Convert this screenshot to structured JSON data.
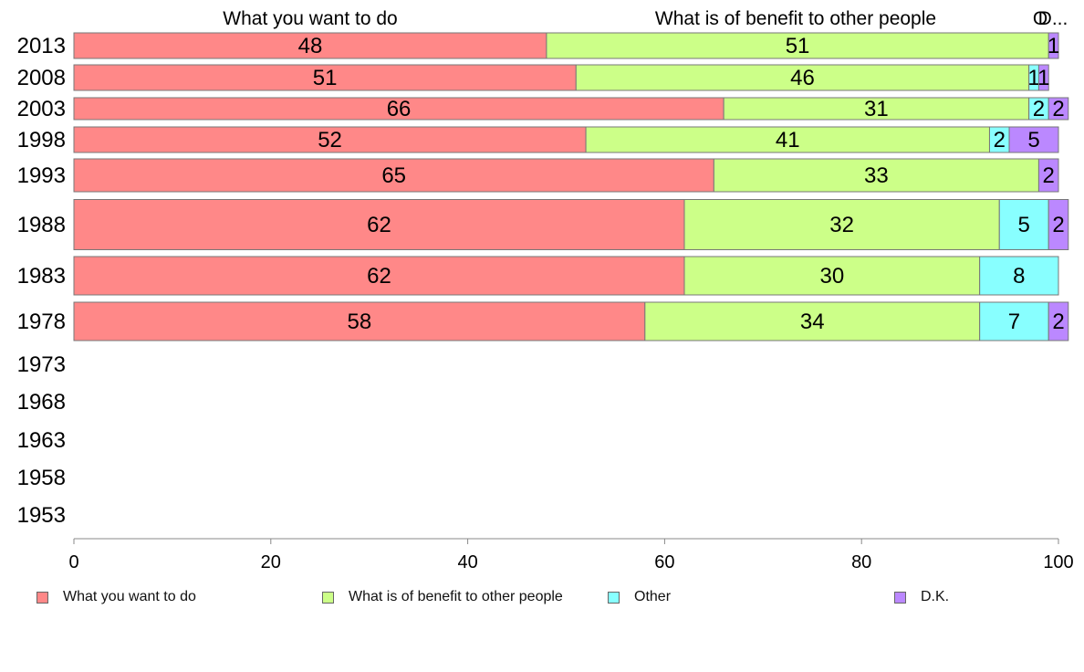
{
  "chart_data": {
    "type": "bar",
    "orientation": "horizontal",
    "stacked": true,
    "title": "",
    "xlabel": "",
    "ylabel": "",
    "xlim": [
      0,
      100
    ],
    "xticks": [
      0,
      20,
      40,
      60,
      80,
      100
    ],
    "grid": false,
    "legend_position": "bottom",
    "categories": [
      "2013",
      "2008",
      "2003",
      "1998",
      "1993",
      "1988",
      "1983",
      "1978",
      "1973",
      "1968",
      "1963",
      "1958",
      "1953"
    ],
    "series": [
      {
        "name": "What you want to do",
        "color": "#ff8888",
        "values": [
          48,
          51,
          66,
          52,
          65,
          62,
          62,
          58,
          null,
          null,
          null,
          null,
          null
        ]
      },
      {
        "name": "What is of benefit to other people",
        "color": "#ccff88",
        "values": [
          51,
          46,
          31,
          41,
          33,
          32,
          30,
          34,
          null,
          null,
          null,
          null,
          null
        ]
      },
      {
        "name": "Other",
        "color": "#88ffff",
        "values": [
          0,
          1,
          2,
          2,
          0,
          5,
          8,
          7,
          null,
          null,
          null,
          null,
          null
        ]
      },
      {
        "name": "D.K.",
        "color": "#bb88ff",
        "values": [
          1,
          1,
          2,
          5,
          2,
          2,
          0,
          2,
          null,
          null,
          null,
          null,
          null
        ]
      }
    ],
    "top_labels": [
      "What you want to do",
      "What is of benefit to other people",
      "O",
      "D..."
    ]
  }
}
